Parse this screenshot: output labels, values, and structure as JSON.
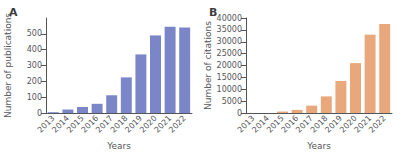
{
  "chart_data": [
    {
      "type": "bar",
      "title": "A",
      "categories": [
        "2013",
        "2014",
        "2015",
        "2016",
        "2017",
        "2018",
        "2019",
        "2020",
        "2021",
        "2022"
      ],
      "values": [
        5,
        22,
        38,
        58,
        112,
        225,
        370,
        490,
        545,
        540
      ],
      "color": "#7b86c8",
      "x_label": "Years",
      "y_label": "Number of publications",
      "ylim": [
        0,
        600
      ],
      "yticks": [
        0,
        100,
        200,
        300,
        400,
        500
      ],
      "grid": false
    },
    {
      "type": "bar",
      "title": "B",
      "categories": [
        "2013",
        "2014",
        "2015",
        "2016",
        "2017",
        "2018",
        "2019",
        "2020",
        "2021",
        "2022"
      ],
      "values": [
        0,
        0,
        600,
        1300,
        3100,
        7000,
        13500,
        21000,
        33000,
        37500
      ],
      "color": "#e8a87c",
      "x_label": "Years",
      "y_label": "Number of citations",
      "ylim": [
        0,
        40000
      ],
      "yticks": [
        0,
        5000,
        10000,
        15000,
        20000,
        25000,
        30000,
        35000,
        40000
      ],
      "grid": false
    }
  ]
}
